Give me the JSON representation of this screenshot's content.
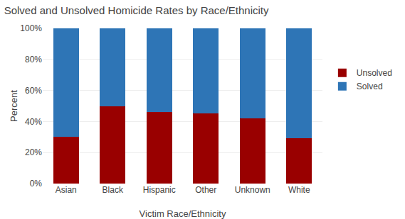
{
  "chart_data": {
    "type": "bar",
    "title": "Solved and Unsolved Homicide Rates by Race/Ethnicity",
    "xlabel": "Victim Race/Ethnicity",
    "ylabel": "Percent",
    "categories": [
      "Asian",
      "Black",
      "Hispanic",
      "Other",
      "Unknown",
      "White"
    ],
    "series": [
      {
        "name": "Unsolved",
        "color": "#990000",
        "values": [
          30,
          50,
          46,
          45,
          42,
          29
        ]
      },
      {
        "name": "Solved",
        "color": "#2E75B6",
        "values": [
          70,
          50,
          54,
          55,
          58,
          71
        ]
      }
    ],
    "stacked": true,
    "ylim": [
      0,
      100
    ],
    "yticks": [
      {
        "value": 0,
        "label": "0%"
      },
      {
        "value": 20,
        "label": "20%"
      },
      {
        "value": 40,
        "label": "40%"
      },
      {
        "value": 60,
        "label": "60%"
      },
      {
        "value": 80,
        "label": "80%"
      },
      {
        "value": 100,
        "label": "100%"
      }
    ],
    "grid": true,
    "legend": "right"
  }
}
